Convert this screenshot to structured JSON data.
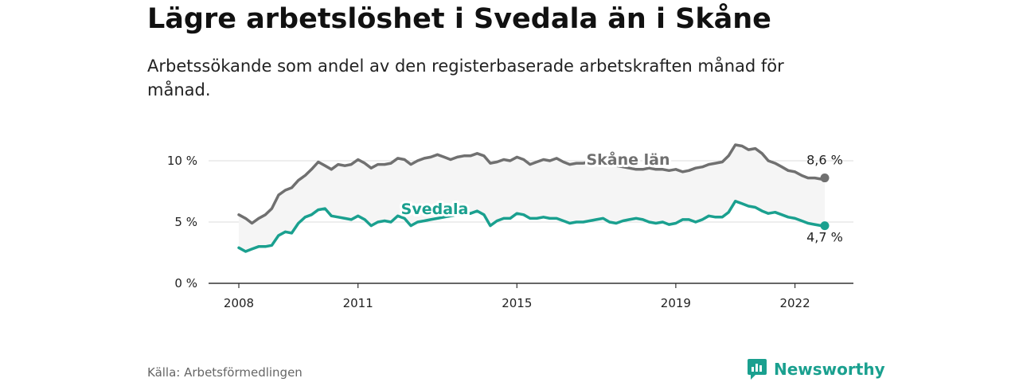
{
  "header": {
    "title": "Lägre arbetslöshet i Svedala än i Skåne",
    "subtitle": "Arbetssökande som andel av den registerbaserade arbetskraften månad för månad."
  },
  "footer": {
    "source": "Källa: Arbetsförmedlingen",
    "brand": "Newsworthy",
    "brand_color": "#1aa08f"
  },
  "chart_data": {
    "type": "line",
    "title": "Lägre arbetslöshet i Svedala än i Skåne",
    "xlabel": "",
    "ylabel": "",
    "xlim": [
      2008.0,
      2022.75
    ],
    "ylim": [
      0,
      10
    ],
    "grid": true,
    "x_ticks": [
      {
        "value": 2008,
        "label": "2008"
      },
      {
        "value": 2011,
        "label": "2011"
      },
      {
        "value": 2015,
        "label": "2015"
      },
      {
        "value": 2019,
        "label": "2019"
      },
      {
        "value": 2022,
        "label": "2022"
      }
    ],
    "y_ticks": [
      {
        "value": 0,
        "label": "0 %"
      },
      {
        "value": 5,
        "label": "5 %"
      },
      {
        "value": 10,
        "label": "10 %"
      }
    ],
    "series": [
      {
        "name": "Skåne län",
        "color": "#707070",
        "end_label": "8,6 %",
        "x": [
          2008.0,
          2008.17,
          2008.33,
          2008.5,
          2008.67,
          2008.83,
          2009.0,
          2009.17,
          2009.33,
          2009.5,
          2009.67,
          2009.83,
          2010.0,
          2010.17,
          2010.33,
          2010.5,
          2010.67,
          2010.83,
          2011.0,
          2011.17,
          2011.33,
          2011.5,
          2011.67,
          2011.83,
          2012.0,
          2012.17,
          2012.33,
          2012.5,
          2012.67,
          2012.83,
          2013.0,
          2013.17,
          2013.33,
          2013.5,
          2013.67,
          2013.83,
          2014.0,
          2014.17,
          2014.33,
          2014.5,
          2014.67,
          2014.83,
          2015.0,
          2015.17,
          2015.33,
          2015.5,
          2015.67,
          2015.83,
          2016.0,
          2016.17,
          2016.33,
          2016.5,
          2016.67,
          2016.83,
          2017.0,
          2017.17,
          2017.33,
          2017.5,
          2017.67,
          2017.83,
          2018.0,
          2018.17,
          2018.33,
          2018.5,
          2018.67,
          2018.83,
          2019.0,
          2019.17,
          2019.33,
          2019.5,
          2019.67,
          2019.83,
          2020.0,
          2020.17,
          2020.33,
          2020.5,
          2020.67,
          2020.83,
          2021.0,
          2021.17,
          2021.33,
          2021.5,
          2021.67,
          2021.83,
          2022.0,
          2022.17,
          2022.33,
          2022.5,
          2022.67,
          2022.75
        ],
        "y": [
          5.6,
          5.3,
          4.9,
          5.3,
          5.6,
          6.1,
          7.2,
          7.6,
          7.8,
          8.4,
          8.8,
          9.3,
          9.9,
          9.6,
          9.3,
          9.7,
          9.6,
          9.7,
          10.1,
          9.8,
          9.4,
          9.7,
          9.7,
          9.8,
          10.2,
          10.1,
          9.7,
          10.0,
          10.2,
          10.3,
          10.5,
          10.3,
          10.1,
          10.3,
          10.4,
          10.4,
          10.6,
          10.4,
          9.8,
          9.9,
          10.1,
          10.0,
          10.3,
          10.1,
          9.7,
          9.9,
          10.1,
          10.0,
          10.2,
          9.9,
          9.7,
          9.8,
          9.8,
          9.9,
          10.0,
          9.9,
          9.7,
          9.6,
          9.5,
          9.4,
          9.3,
          9.3,
          9.4,
          9.3,
          9.3,
          9.2,
          9.3,
          9.1,
          9.2,
          9.4,
          9.5,
          9.7,
          9.8,
          9.9,
          10.4,
          11.3,
          11.2,
          10.9,
          11.0,
          10.6,
          10.0,
          9.8,
          9.5,
          9.2,
          9.1,
          8.8,
          8.6,
          8.6,
          8.5,
          8.6
        ]
      },
      {
        "name": "Svedala",
        "color": "#1aa08f",
        "end_label": "4,7 %",
        "x": [
          2008.0,
          2008.17,
          2008.33,
          2008.5,
          2008.67,
          2008.83,
          2009.0,
          2009.17,
          2009.33,
          2009.5,
          2009.67,
          2009.83,
          2010.0,
          2010.17,
          2010.33,
          2010.5,
          2010.67,
          2010.83,
          2011.0,
          2011.17,
          2011.33,
          2011.5,
          2011.67,
          2011.83,
          2012.0,
          2012.17,
          2012.33,
          2012.5,
          2012.67,
          2012.83,
          2013.0,
          2013.17,
          2013.33,
          2013.5,
          2013.67,
          2013.83,
          2014.0,
          2014.17,
          2014.33,
          2014.5,
          2014.67,
          2014.83,
          2015.0,
          2015.17,
          2015.33,
          2015.5,
          2015.67,
          2015.83,
          2016.0,
          2016.17,
          2016.33,
          2016.5,
          2016.67,
          2016.83,
          2017.0,
          2017.17,
          2017.33,
          2017.5,
          2017.67,
          2017.83,
          2018.0,
          2018.17,
          2018.33,
          2018.5,
          2018.67,
          2018.83,
          2019.0,
          2019.17,
          2019.33,
          2019.5,
          2019.67,
          2019.83,
          2020.0,
          2020.17,
          2020.33,
          2020.5,
          2020.67,
          2020.83,
          2021.0,
          2021.17,
          2021.33,
          2021.5,
          2021.67,
          2021.83,
          2022.0,
          2022.17,
          2022.33,
          2022.5,
          2022.67,
          2022.75
        ],
        "y": [
          2.9,
          2.6,
          2.8,
          3.0,
          3.0,
          3.1,
          3.9,
          4.2,
          4.1,
          4.9,
          5.4,
          5.6,
          6.0,
          6.1,
          5.5,
          5.4,
          5.3,
          5.2,
          5.5,
          5.2,
          4.7,
          5.0,
          5.1,
          5.0,
          5.5,
          5.3,
          4.7,
          5.0,
          5.1,
          5.2,
          5.3,
          5.4,
          5.5,
          5.6,
          5.7,
          5.7,
          5.9,
          5.6,
          4.7,
          5.1,
          5.3,
          5.3,
          5.7,
          5.6,
          5.3,
          5.3,
          5.4,
          5.3,
          5.3,
          5.1,
          4.9,
          5.0,
          5.0,
          5.1,
          5.2,
          5.3,
          5.0,
          4.9,
          5.1,
          5.2,
          5.3,
          5.2,
          5.0,
          4.9,
          5.0,
          4.8,
          4.9,
          5.2,
          5.2,
          5.0,
          5.2,
          5.5,
          5.4,
          5.4,
          5.8,
          6.7,
          6.5,
          6.3,
          6.2,
          5.9,
          5.7,
          5.8,
          5.6,
          5.4,
          5.3,
          5.1,
          4.9,
          4.8,
          4.7,
          4.7
        ]
      }
    ]
  }
}
